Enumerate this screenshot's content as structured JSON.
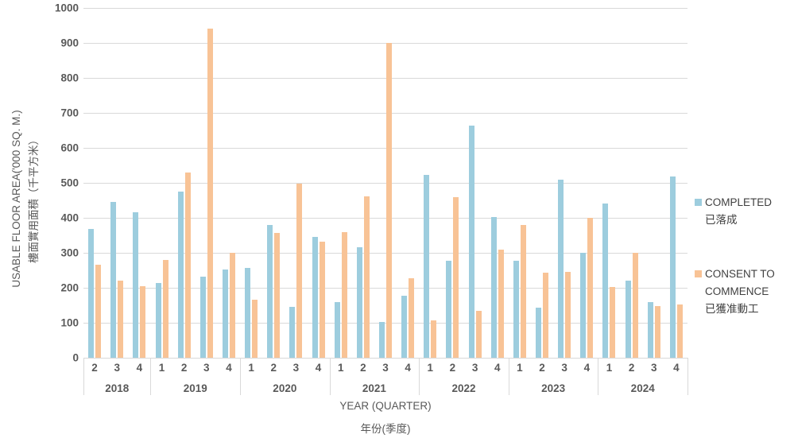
{
  "chart_data": {
    "type": "bar",
    "title": "",
    "xlabel_en": "YEAR (QUARTER)",
    "xlabel_zh": "年份(季度)",
    "ylabel_en": "USABLE FLOOR AREA('000 SQ. M.)",
    "ylabel_zh": "樓面實用面積（千平方米）",
    "ylim": [
      0,
      1000
    ],
    "ytick_step": 100,
    "grid": true,
    "legend_position": "right",
    "groups": [
      {
        "year": "2018",
        "quarters": [
          "2",
          "3",
          "4"
        ]
      },
      {
        "year": "2019",
        "quarters": [
          "1",
          "2",
          "3",
          "4"
        ]
      },
      {
        "year": "2020",
        "quarters": [
          "1",
          "2",
          "3",
          "4"
        ]
      },
      {
        "year": "2021",
        "quarters": [
          "1",
          "2",
          "3",
          "4"
        ]
      },
      {
        "year": "2022",
        "quarters": [
          "1",
          "2",
          "3",
          "4"
        ]
      },
      {
        "year": "2023",
        "quarters": [
          "1",
          "2",
          "3",
          "4"
        ]
      },
      {
        "year": "2024",
        "quarters": [
          "1",
          "2",
          "3",
          "4"
        ]
      }
    ],
    "series": [
      {
        "name_en": "COMPLETED",
        "name_zh": "已落成",
        "color": "#9dcdde",
        "values": [
          368,
          445,
          415,
          213,
          475,
          232,
          253,
          257,
          380,
          145,
          345,
          158,
          315,
          102,
          178,
          522,
          277,
          663,
          403,
          277,
          143,
          510,
          300,
          440,
          220,
          160,
          518
        ]
      },
      {
        "name_en": "CONSENT TO COMMENCE",
        "name_zh": "已獲准動工",
        "color": "#f8c396",
        "values": [
          265,
          220,
          205,
          280,
          530,
          940,
          300,
          167,
          357,
          497,
          332,
          358,
          462,
          900,
          228,
          107,
          460,
          133,
          310,
          380,
          243,
          245,
          400,
          203,
          300,
          148,
          152
        ]
      }
    ]
  },
  "colors": {
    "gridline": "#d9d9d9",
    "axis_text": "#595959",
    "legend_text": "#404040",
    "background": "#ffffff"
  }
}
